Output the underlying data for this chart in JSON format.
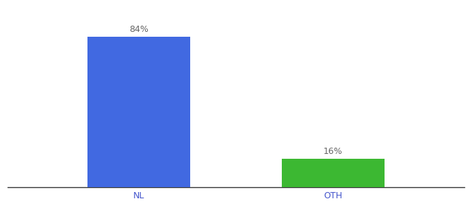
{
  "categories": [
    "NL",
    "OTH"
  ],
  "values": [
    84,
    16
  ],
  "bar_colors": [
    "#4169e1",
    "#3cb832"
  ],
  "label_texts": [
    "84%",
    "16%"
  ],
  "ylim": [
    0,
    100
  ],
  "background_color": "#ffffff",
  "label_fontsize": 9,
  "tick_fontsize": 9,
  "bar_width": 0.18,
  "x_positions": [
    0.28,
    0.62
  ],
  "xlim": [
    0.05,
    0.85
  ],
  "tick_color": "#4455cc",
  "label_color": "#666666",
  "spine_color": "#333333"
}
